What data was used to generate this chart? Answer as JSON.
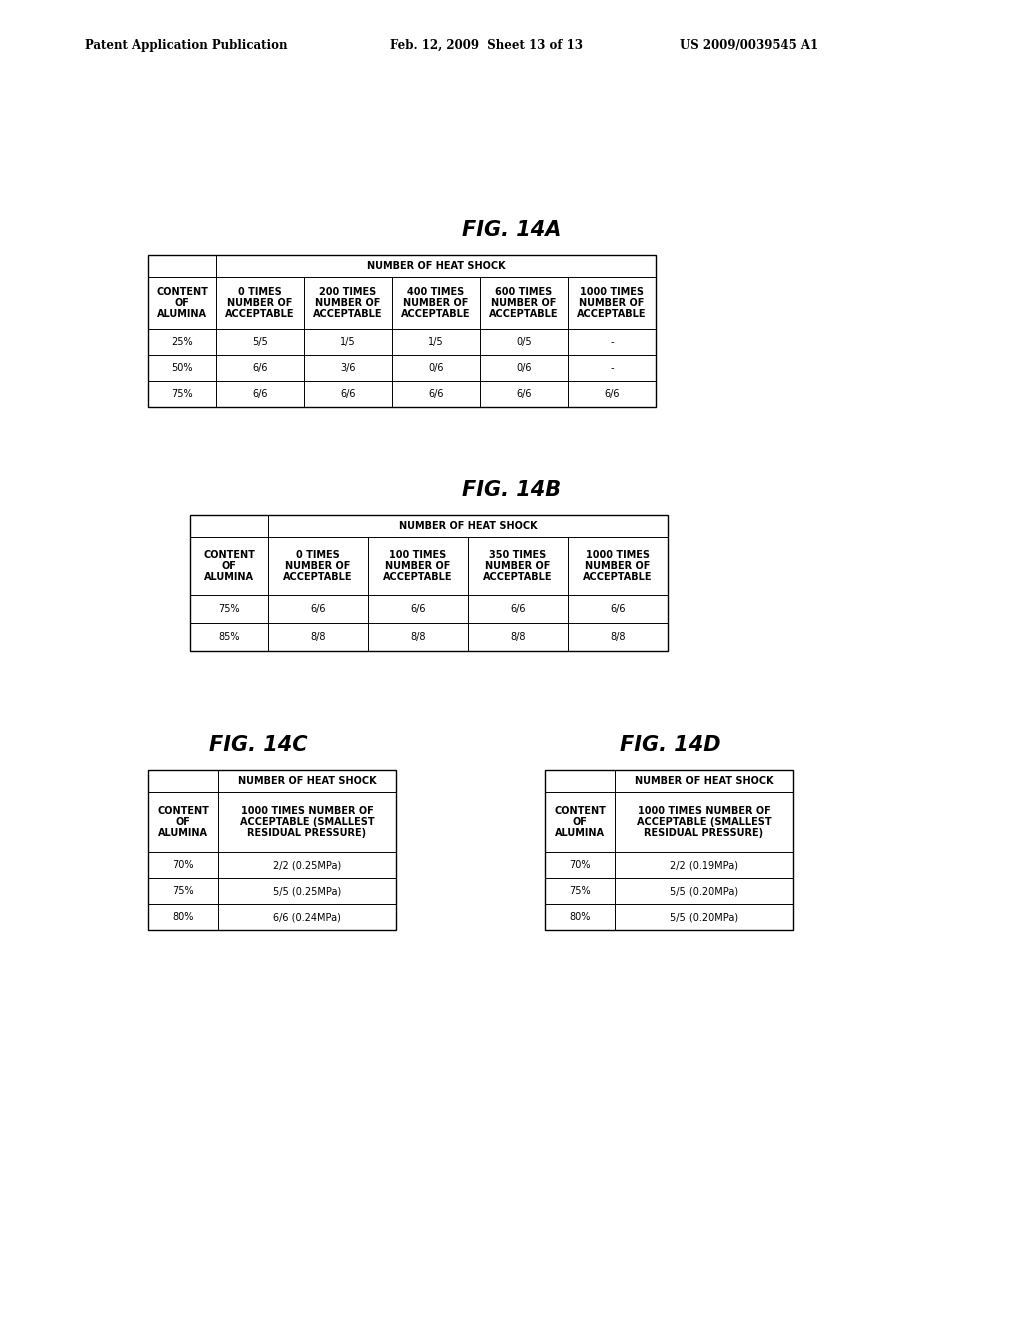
{
  "header_text_left": "Patent Application Publication",
  "header_text_mid": "Feb. 12, 2009  Sheet 13 of 13",
  "header_text_right": "US 2009/0039545 A1",
  "fig14a_title": "FIG. 14A",
  "fig14b_title": "FIG. 14B",
  "fig14c_title": "FIG. 14C",
  "fig14d_title": "FIG. 14D",
  "table_a": {
    "col_header_row1": [
      "",
      "NUMBER OF HEAT SHOCK"
    ],
    "col_header_row2": [
      "CONTENT\nOF\nALUMINA",
      "0 TIMES\nNUMBER OF\nACCEPTABLE",
      "200 TIMES\nNUMBER OF\nACCEPTABLE",
      "400 TIMES\nNUMBER OF\nACCEPTABLE",
      "600 TIMES\nNUMBER OF\nACCEPTABLE",
      "1000 TIMES\nNUMBER OF\nACCEPTABLE"
    ],
    "data": [
      [
        "25%",
        "5/5",
        "1/5",
        "1/5",
        "0/5",
        "-"
      ],
      [
        "50%",
        "6/6",
        "3/6",
        "0/6",
        "0/6",
        "-"
      ],
      [
        "75%",
        "6/6",
        "6/6",
        "6/6",
        "6/6",
        "6/6"
      ]
    ]
  },
  "table_b": {
    "col_header_row1": [
      "",
      "NUMBER OF HEAT SHOCK"
    ],
    "col_header_row2": [
      "CONTENT\nOF\nALUMINA",
      "0 TIMES\nNUMBER OF\nACCEPTABLE",
      "100 TIMES\nNUMBER OF\nACCEPTABLE",
      "350 TIMES\nNUMBER OF\nACCEPTABLE",
      "1000 TIMES\nNUMBER OF\nACCEPTABLE"
    ],
    "data": [
      [
        "75%",
        "6/6",
        "6/6",
        "6/6",
        "6/6"
      ],
      [
        "85%",
        "8/8",
        "8/8",
        "8/8",
        "8/8"
      ]
    ]
  },
  "table_c": {
    "col_header_row1": [
      "",
      "NUMBER OF HEAT SHOCK"
    ],
    "col_header_row2": [
      "CONTENT\nOF\nALUMINA",
      "1000 TIMES NUMBER OF\nACCEPTABLE (SMALLEST\nRESIDUAL PRESSURE)"
    ],
    "data": [
      [
        "70%",
        "2/2 (0.25MPa)"
      ],
      [
        "75%",
        "5/5 (0.25MPa)"
      ],
      [
        "80%",
        "6/6 (0.24MPa)"
      ]
    ]
  },
  "table_d": {
    "col_header_row1": [
      "",
      "NUMBER OF HEAT SHOCK"
    ],
    "col_header_row2": [
      "CONTENT\nOF\nALUMINA",
      "1000 TIMES NUMBER OF\nACCEPTABLE (SMALLEST\nRESIDUAL PRESSURE)"
    ],
    "data": [
      [
        "70%",
        "2/2 (0.19MPa)"
      ],
      [
        "75%",
        "5/5 (0.20MPa)"
      ],
      [
        "80%",
        "5/5 (0.20MPa)"
      ]
    ]
  },
  "bg_color": "#ffffff",
  "text_color": "#000000",
  "line_color": "#000000"
}
